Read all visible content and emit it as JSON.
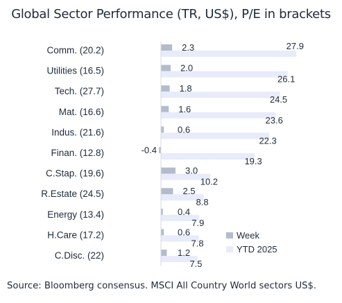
{
  "chart_data": {
    "type": "bar",
    "orientation": "horizontal",
    "title": "Global Sector Performance (TR, US$), P/E in brackets",
    "categories": [
      "Comm. (20.2)",
      "Utilities (16.5)",
      "Tech. (27.7)",
      "Mat. (16.6)",
      "Indus. (21.6)",
      "Finan. (12.8)",
      "C.Stap. (19.6)",
      "R.Estate (24.5)",
      "Energy (13.4)",
      "H.Care (17.2)",
      "C.Disc. (22)"
    ],
    "series": [
      {
        "name": "Week",
        "values": [
          2.3,
          2.0,
          1.8,
          1.6,
          0.6,
          -0.4,
          3.0,
          2.5,
          0.4,
          0.6,
          1.2
        ],
        "labels": [
          "2.3",
          "2.0",
          "1.8",
          "1.6",
          "0.6",
          "-0.4",
          "3.0",
          "2.5",
          "0.4",
          "0.6",
          "1.2"
        ],
        "color": "#b4bccb"
      },
      {
        "name": "YTD 2025",
        "values": [
          27.9,
          26.1,
          24.5,
          23.6,
          22.3,
          19.3,
          10.2,
          8.8,
          7.9,
          7.8,
          7.5
        ],
        "labels": [
          "27.9",
          "26.1",
          "24.5",
          "23.6",
          "22.3",
          "19.3",
          "10.2",
          "8.8",
          "7.9",
          "7.8",
          "7.5"
        ],
        "color": "#e8ebfa"
      }
    ],
    "legend_position": "bottom-right",
    "grid": false,
    "source": "Source: Bloomberg consensus. MSCI All Country World sectors US$."
  }
}
